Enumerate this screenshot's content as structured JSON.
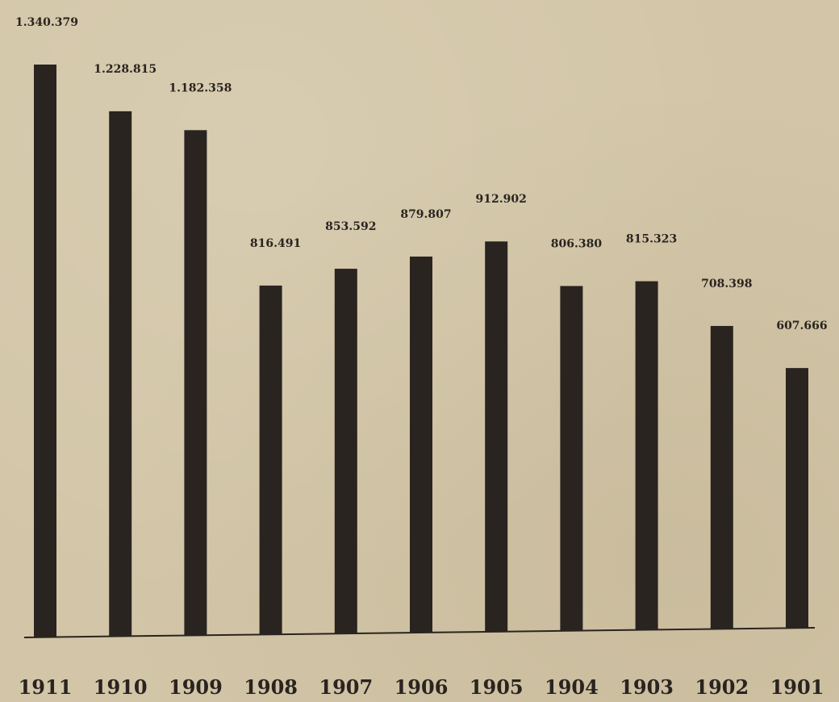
{
  "chart_data": {
    "type": "bar",
    "title": "",
    "xlabel": "",
    "ylabel": "",
    "categories": [
      "1911",
      "1910",
      "1909",
      "1908",
      "1907",
      "1906",
      "1905",
      "1904",
      "1903",
      "1902",
      "1901"
    ],
    "values": [
      1340379,
      1228815,
      1182358,
      816491,
      853592,
      879807,
      912902,
      806380,
      815323,
      708398,
      607666
    ],
    "value_labels": [
      "1.340.379",
      "1.228.815",
      "1.182.358",
      "816.491",
      "853.592",
      "879.807",
      "912.902",
      "806.380",
      "815.323",
      "708.398",
      "607.666"
    ],
    "ylim": [
      0,
      1340379
    ],
    "grid": false,
    "colors": {
      "bar": "#2a2420",
      "background": "#d3c6a8"
    }
  }
}
